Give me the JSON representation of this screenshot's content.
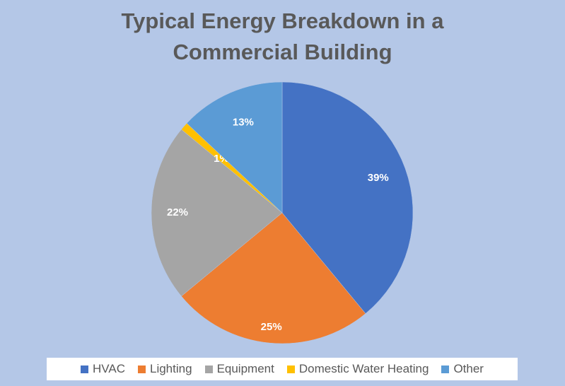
{
  "chart_data": {
    "type": "pie",
    "title_lines": [
      "Typical Energy Breakdown in a",
      "Commercial Building"
    ],
    "slices": [
      {
        "name": "HVAC",
        "value": 39,
        "label": "39%",
        "color": "#4472c4"
      },
      {
        "name": "Lighting",
        "value": 25,
        "label": "25%",
        "color": "#ed7d31"
      },
      {
        "name": "Equipment",
        "value": 22,
        "label": "22%",
        "color": "#a5a5a5"
      },
      {
        "name": "Domestic Water Heating",
        "value": 1,
        "label": "1%",
        "color": "#ffc000"
      },
      {
        "name": "Other",
        "value": 13,
        "label": "13%",
        "color": "#5b9bd5"
      }
    ],
    "legend_position": "bottom"
  }
}
